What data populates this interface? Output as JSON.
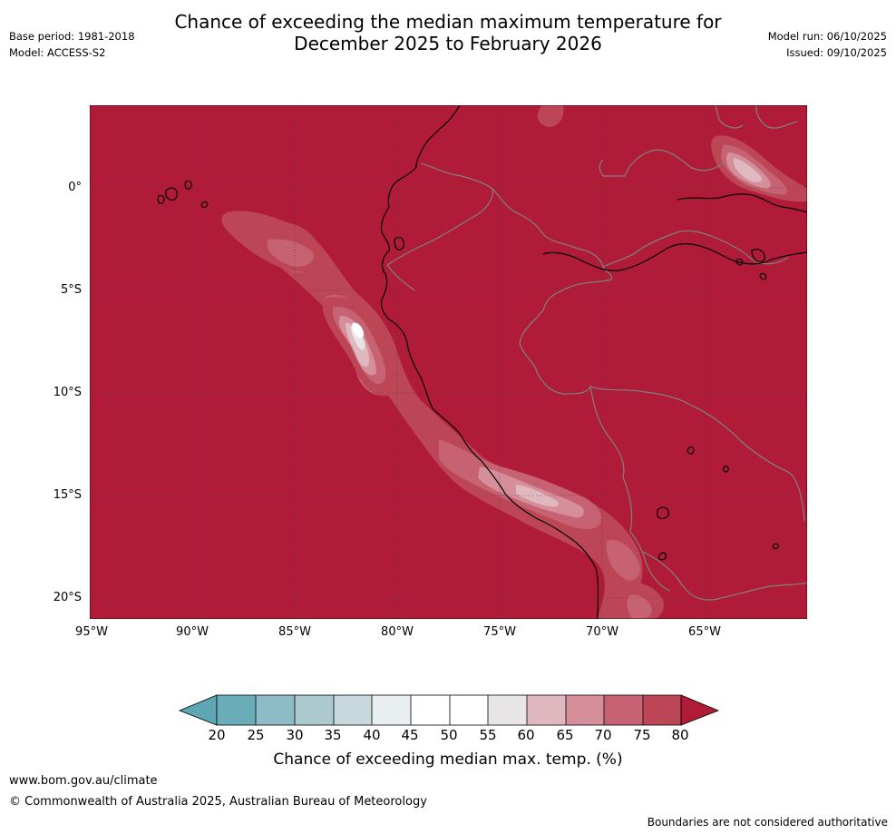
{
  "header": {
    "title_line1": "Chance of exceeding the median maximum temperature for",
    "title_line2": "December 2025 to February 2026",
    "base_period": "Base period: 1981-2018",
    "model": "Model: ACCESS-S2",
    "model_run": "Model run: 06/10/2025",
    "issued": "Issued: 09/10/2025"
  },
  "map": {
    "region": "Western South America and Eastern Pacific",
    "background_probability_pct": 80,
    "latitude_labels": [
      "0°",
      "5°S",
      "10°S",
      "15°S",
      "20°S"
    ],
    "longitude_labels": [
      "95°W",
      "90°W",
      "85°W",
      "80°W",
      "75°W",
      "70°W",
      "65°W"
    ],
    "colors": {
      "land_coast": "#000000",
      "country_border": "#808080",
      "gridline": "#404040"
    }
  },
  "colorbar": {
    "title": "Chance of exceeding median max. temp. (%)",
    "ticks": [
      "20",
      "25",
      "30",
      "35",
      "40",
      "45",
      "50",
      "55",
      "60",
      "65",
      "70",
      "75",
      "80"
    ],
    "colors": {
      "below_20": "#5da6b4",
      "20_25": "#6aadb8",
      "25_30": "#8ebcc6",
      "30_35": "#abc9cf",
      "35_40": "#c8d9dd",
      "40_45": "#e9eff1",
      "45_50": "#ffffff",
      "50_55": "#ffffff",
      "55_60": "#e8e5e6",
      "60_65": "#e0b8bf",
      "65_70": "#d48f9a",
      "70_75": "#c66271",
      "75_80": "#bd4656",
      "above_80": "#b01c38"
    }
  },
  "footer": {
    "website": "www.bom.gov.au/climate",
    "copyright": "© Commonwealth of Australia 2025, Australian Bureau of Meteorology",
    "disclaimer": "Boundaries are not considered authoritative"
  }
}
